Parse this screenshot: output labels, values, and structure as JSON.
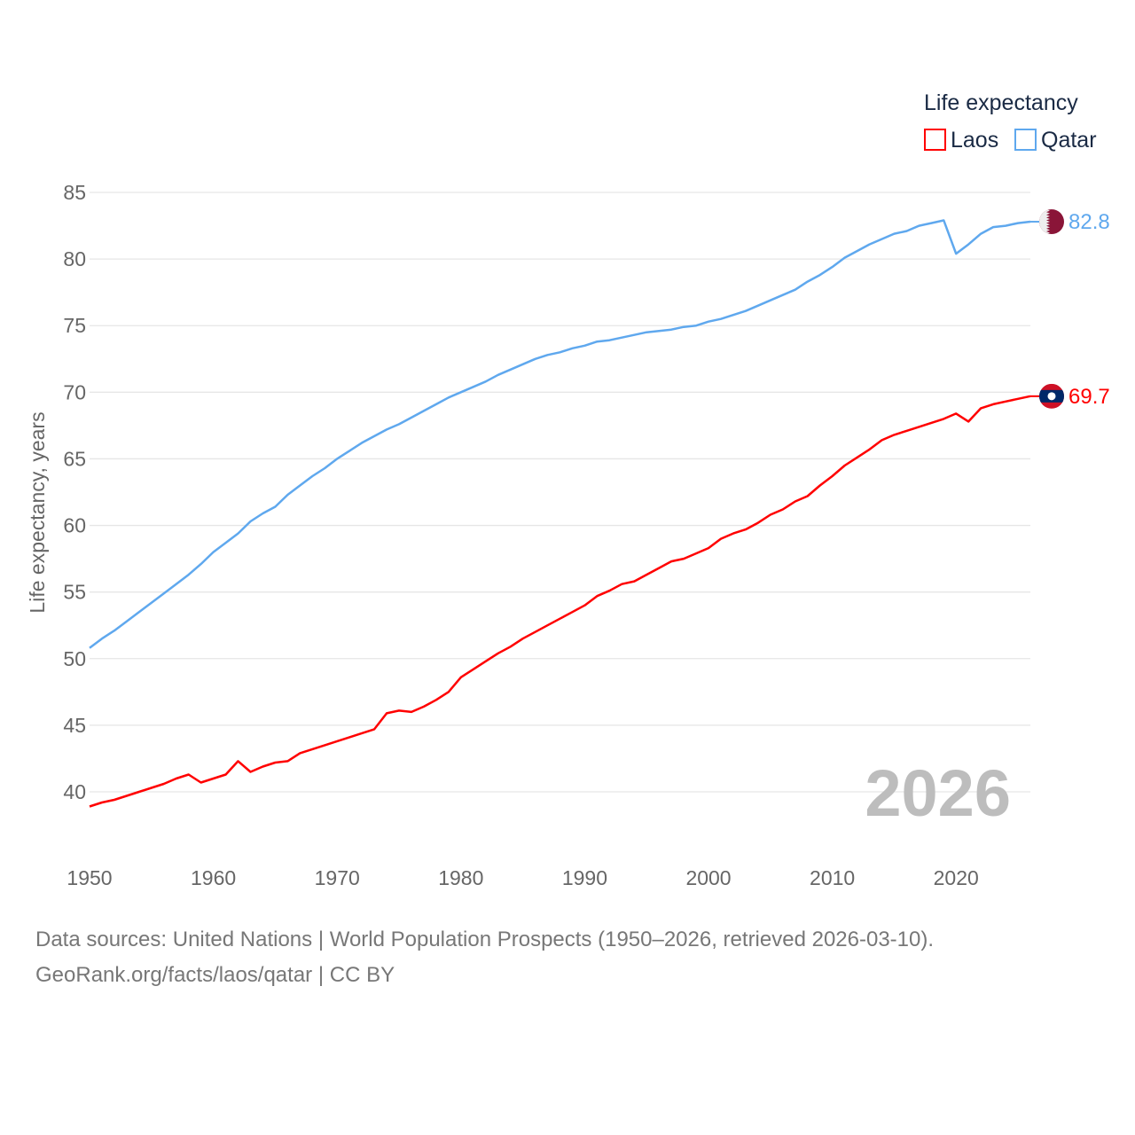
{
  "chart_data": {
    "type": "line",
    "title": "",
    "ylabel": "Life expectancy, years",
    "xlabel": "",
    "legend_title": "Life expectancy",
    "legend_position": "top-right",
    "current_year_label": "2026",
    "xlim": [
      1950,
      2026
    ],
    "ylim": [
      38,
      85
    ],
    "x_ticks": [
      "1950",
      "1960",
      "1970",
      "1980",
      "1990",
      "2000",
      "2010",
      "2020"
    ],
    "y_ticks": [
      "40",
      "45",
      "50",
      "55",
      "60",
      "65",
      "70",
      "75",
      "80",
      "85"
    ],
    "grid": true,
    "x_start": 1950,
    "series": [
      {
        "name": "Laos",
        "color": "#ff0000",
        "end_label": "69.7",
        "flag": "laos-flag",
        "values": [
          38.9,
          39.2,
          39.4,
          39.7,
          40.0,
          40.3,
          40.6,
          41.0,
          41.3,
          40.7,
          41.0,
          41.3,
          42.3,
          41.5,
          41.9,
          42.2,
          42.3,
          42.9,
          43.2,
          43.5,
          43.8,
          44.1,
          44.4,
          44.7,
          45.9,
          46.1,
          46.0,
          46.4,
          46.9,
          47.5,
          48.6,
          49.2,
          49.8,
          50.4,
          50.9,
          51.5,
          52.0,
          52.5,
          53.0,
          53.5,
          54.0,
          54.7,
          55.1,
          55.6,
          55.8,
          56.3,
          56.8,
          57.3,
          57.5,
          57.9,
          58.3,
          59.0,
          59.4,
          59.7,
          60.2,
          60.8,
          61.2,
          61.8,
          62.2,
          63.0,
          63.7,
          64.5,
          65.1,
          65.7,
          66.4,
          66.8,
          67.1,
          67.4,
          67.7,
          68.0,
          68.4,
          67.8,
          68.8,
          69.1,
          69.3,
          69.5,
          69.7
        ]
      },
      {
        "name": "Qatar",
        "color": "#5fa8ee",
        "end_label": "82.8",
        "flag": "qatar-flag",
        "values": [
          50.8,
          51.5,
          52.1,
          52.8,
          53.5,
          54.2,
          54.9,
          55.6,
          56.3,
          57.1,
          58.0,
          58.7,
          59.4,
          60.3,
          60.9,
          61.4,
          62.3,
          63.0,
          63.7,
          64.3,
          65.0,
          65.6,
          66.2,
          66.7,
          67.2,
          67.6,
          68.1,
          68.6,
          69.1,
          69.6,
          70.0,
          70.4,
          70.8,
          71.3,
          71.7,
          72.1,
          72.5,
          72.8,
          73.0,
          73.3,
          73.5,
          73.8,
          73.9,
          74.1,
          74.3,
          74.5,
          74.6,
          74.7,
          74.9,
          75.0,
          75.3,
          75.5,
          75.8,
          76.1,
          76.5,
          76.9,
          77.3,
          77.7,
          78.3,
          78.8,
          79.4,
          80.1,
          80.6,
          81.1,
          81.5,
          81.9,
          82.1,
          82.5,
          82.7,
          82.9,
          80.4,
          81.1,
          81.9,
          82.4,
          82.5,
          82.7,
          82.8
        ]
      }
    ]
  },
  "footer": {
    "source": "Data sources: United Nations | World Population Prospects (1950–2026, retrieved 2026-03-10).",
    "link": "GeoRank.org/facts/laos/qatar | CC BY"
  }
}
